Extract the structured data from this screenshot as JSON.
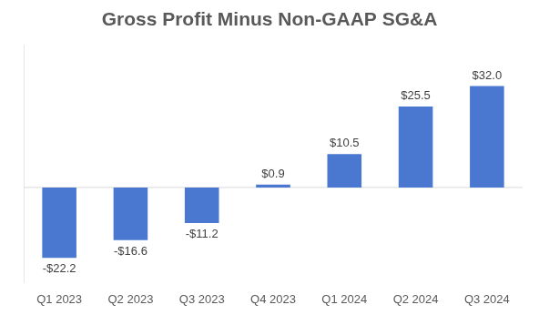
{
  "chart_data": {
    "type": "bar",
    "title": "Gross Profit Minus Non-GAAP SG&A",
    "categories": [
      "Q1 2023",
      "Q2 2023",
      "Q3 2023",
      "Q4 2023",
      "Q1 2024",
      "Q2 2024",
      "Q3 2024"
    ],
    "values": [
      -22.2,
      -16.6,
      -11.2,
      0.9,
      10.5,
      25.5,
      32.0
    ],
    "value_labels": [
      "-$22.2",
      "-$16.6",
      "-$11.2",
      "$0.9",
      "$10.5",
      "$25.5",
      "$32.0"
    ],
    "color": "#4a78d0",
    "ylim": [
      -30,
      45
    ],
    "grid": false,
    "data_labels": true,
    "tick_labels": "x"
  }
}
